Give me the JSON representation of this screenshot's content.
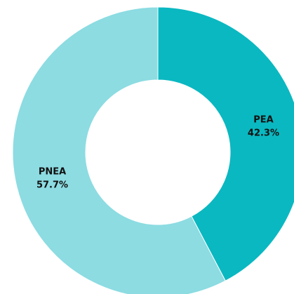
{
  "chart_data": {
    "type": "donut",
    "categories": [
      "PEA",
      "PNEA"
    ],
    "values": [
      42.3,
      57.7
    ],
    "value_labels": [
      "42.3%",
      "57.7%"
    ],
    "colors": [
      "#0ab8c1",
      "#8cdce2"
    ]
  }
}
